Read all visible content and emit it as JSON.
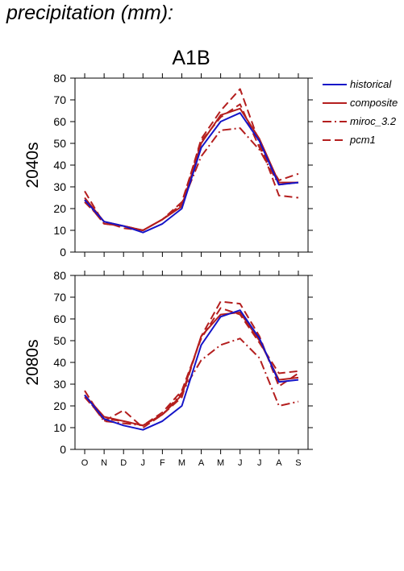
{
  "figure_title": "precipitation (mm):",
  "scenario_label": "A1B",
  "legend": {
    "historical": "historical",
    "composite": "composite",
    "miroc": "miroc_3.2",
    "pcm1": "pcm1"
  },
  "colors": {
    "historical": "#1515c8",
    "models": "#b41e1e",
    "axis": "#000000"
  },
  "chart_data": [
    {
      "type": "line",
      "ylabel": "2040s",
      "ylim": [
        0,
        80
      ],
      "yticks": [
        0,
        10,
        20,
        30,
        40,
        50,
        60,
        70,
        80
      ],
      "categories": [
        "O",
        "N",
        "D",
        "J",
        "F",
        "M",
        "A",
        "M",
        "J",
        "J",
        "A",
        "S"
      ],
      "grid": false,
      "legend_position": "right",
      "series": [
        {
          "name": "historical",
          "key": "historical",
          "style": "solid",
          "values": [
            24,
            14,
            12,
            9,
            13,
            20,
            48,
            60,
            64,
            51,
            31,
            32
          ]
        },
        {
          "name": "composite",
          "key": "composite",
          "style": "solid",
          "values": [
            25,
            14,
            12,
            10,
            15,
            21,
            50,
            63,
            66,
            52,
            32,
            32
          ]
        },
        {
          "name": "miroc_3.2",
          "key": "miroc",
          "style": "dashdot",
          "values": [
            24,
            13,
            12,
            10,
            15,
            22,
            44,
            56,
            57,
            47,
            31,
            32
          ]
        },
        {
          "name": "pcm1",
          "key": "pcm1",
          "style": "dashed",
          "values": [
            28,
            13,
            12,
            10,
            15,
            22,
            52,
            65,
            75,
            50,
            26,
            25
          ]
        },
        {
          "name": "",
          "key": "extra",
          "style": "dashed",
          "values": [
            23,
            14,
            11,
            10,
            15,
            23,
            51,
            62,
            68,
            48,
            33,
            36
          ]
        }
      ]
    },
    {
      "type": "line",
      "ylabel": "2080s",
      "ylim": [
        0,
        80
      ],
      "yticks": [
        0,
        10,
        20,
        30,
        40,
        50,
        60,
        70,
        80
      ],
      "categories": [
        "O",
        "N",
        "D",
        "J",
        "F",
        "M",
        "A",
        "M",
        "J",
        "J",
        "A",
        "S"
      ],
      "grid": false,
      "legend_position": "none",
      "series": [
        {
          "name": "historical",
          "key": "historical",
          "style": "solid",
          "values": [
            25,
            14,
            11,
            9,
            13,
            20,
            48,
            61,
            64,
            51,
            31,
            32
          ]
        },
        {
          "name": "composite",
          "key": "composite",
          "style": "solid",
          "values": [
            25,
            15,
            13,
            11,
            16,
            25,
            52,
            62,
            63,
            50,
            32,
            33
          ]
        },
        {
          "name": "miroc_3.2",
          "key": "miroc",
          "style": "dashdot",
          "values": [
            25,
            13,
            12,
            11,
            16,
            26,
            41,
            48,
            51,
            42,
            20,
            22
          ]
        },
        {
          "name": "pcm1",
          "key": "pcm1",
          "style": "dashed",
          "values": [
            27,
            13,
            18,
            10,
            16,
            24,
            52,
            68,
            67,
            52,
            29,
            35
          ]
        },
        {
          "name": "",
          "key": "extra",
          "style": "dashed",
          "values": [
            24,
            14,
            13,
            11,
            17,
            27,
            51,
            65,
            62,
            49,
            35,
            36
          ]
        }
      ]
    }
  ]
}
